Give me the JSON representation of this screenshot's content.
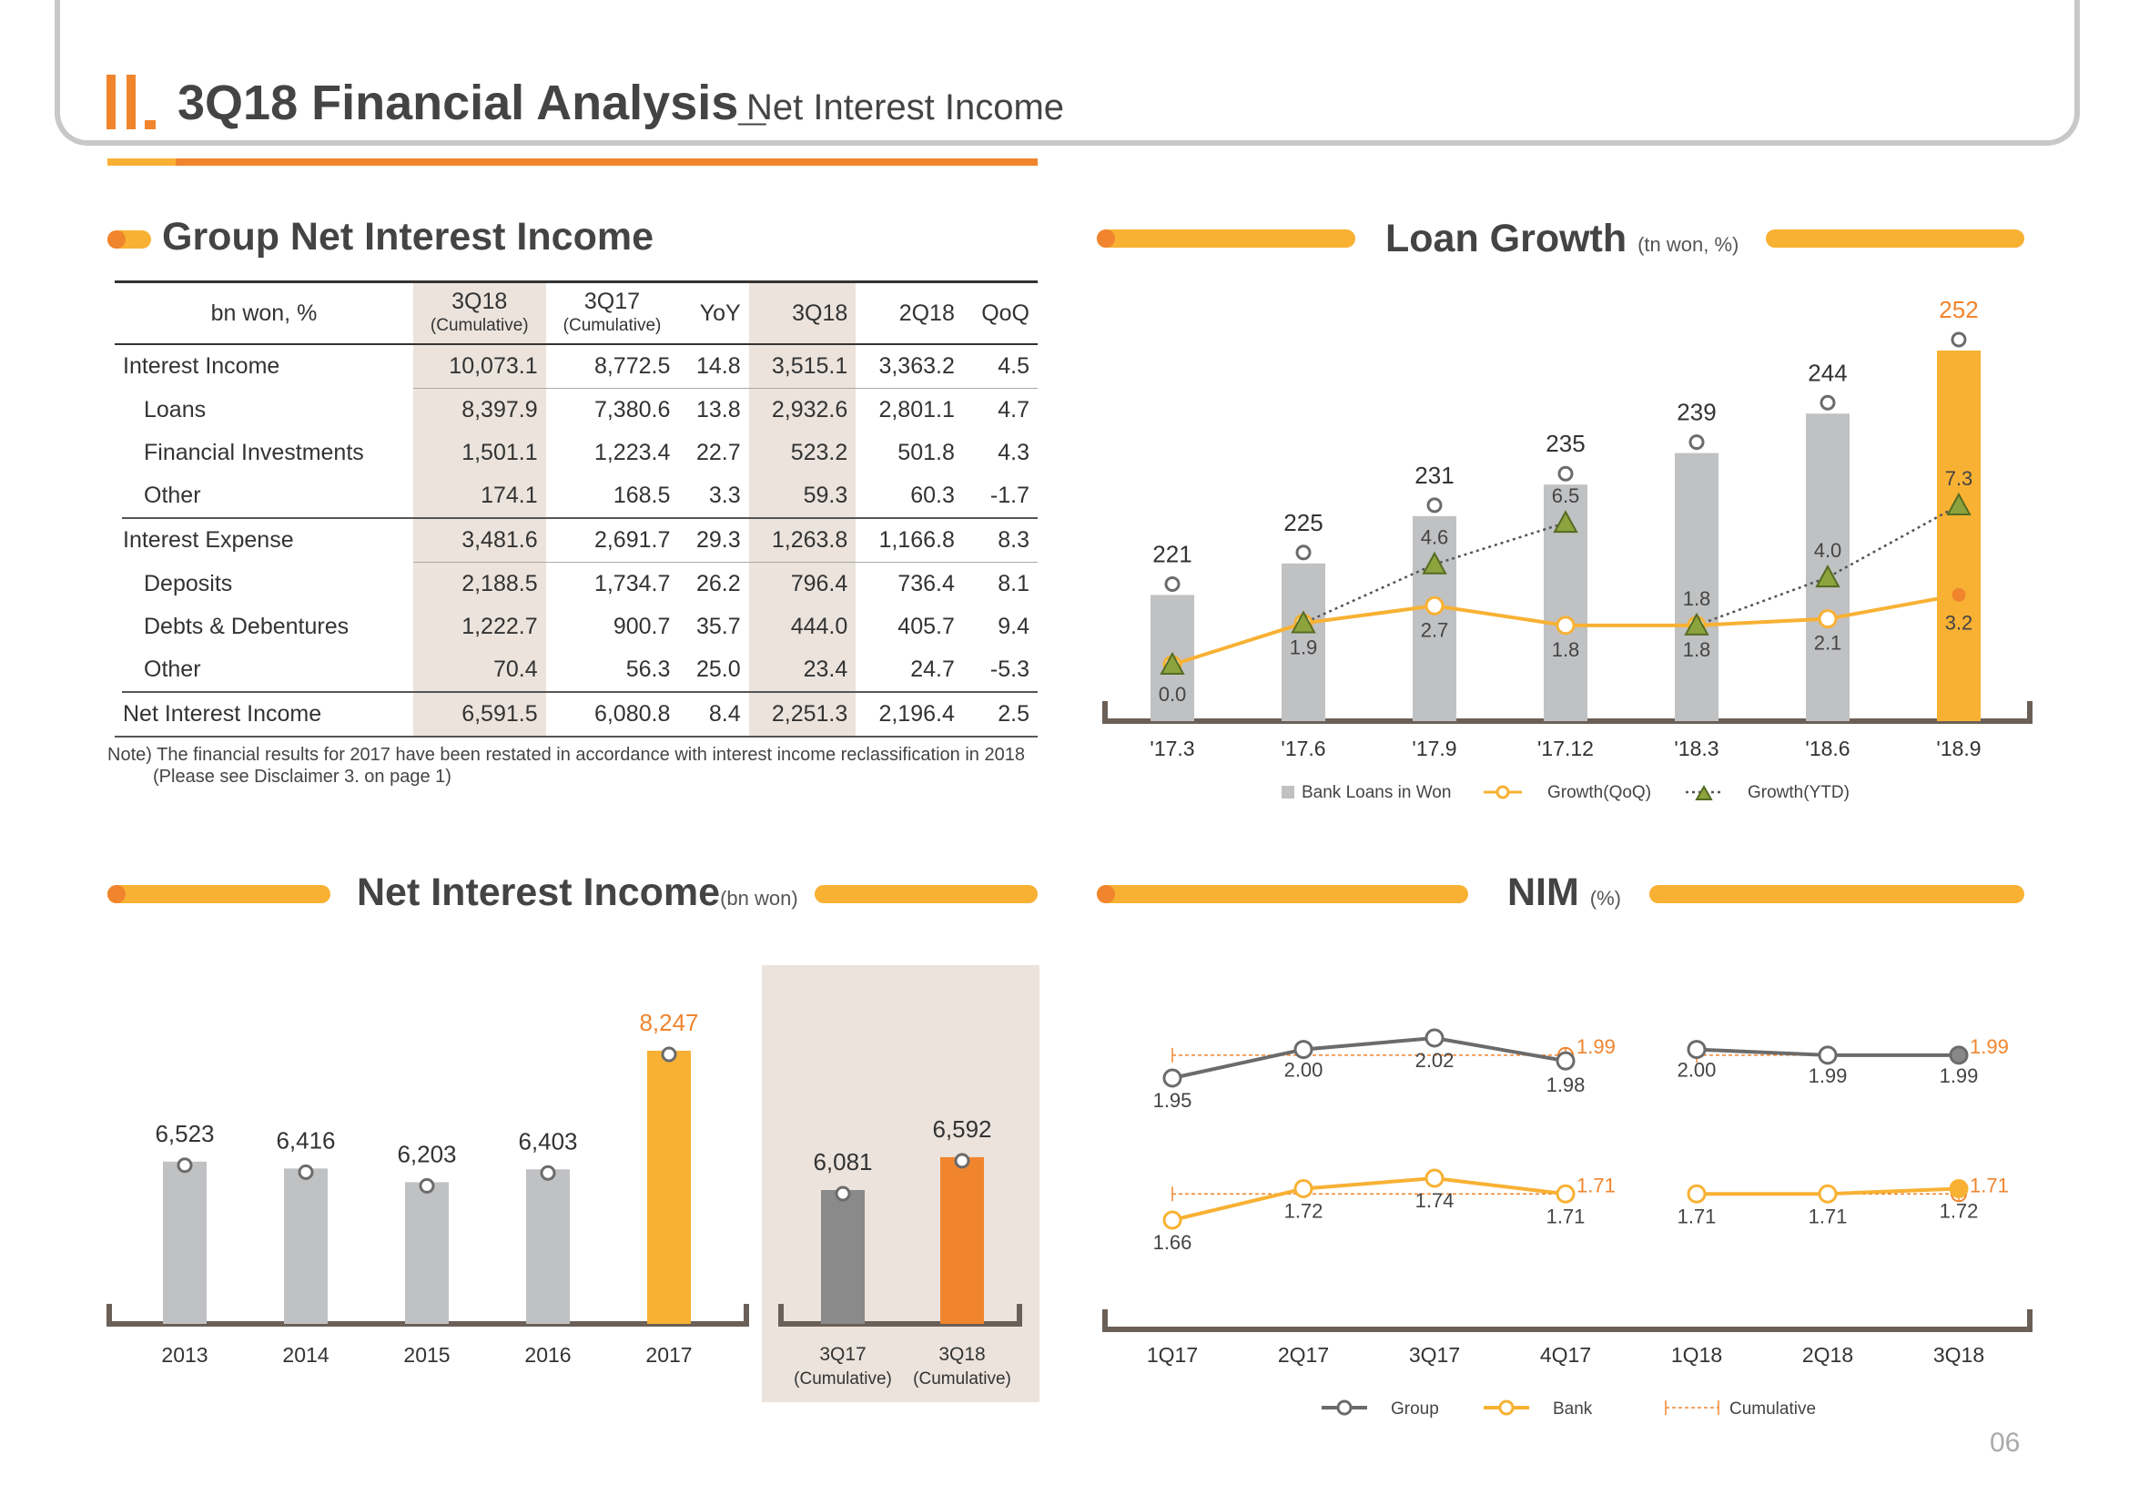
{
  "header": {
    "section_mark": "II.",
    "title": "3Q18 Financial Analysis_",
    "subtitle": "Net Interest Income"
  },
  "page_number": "06",
  "table_section": {
    "title": "Group Net Interest Income"
  },
  "table": {
    "header": {
      "label": "bn won, %",
      "c1": "3Q18",
      "c1s": "(Cumulative)",
      "c2": "3Q17",
      "c2s": "(Cumulative)",
      "c3": "YoY",
      "c4": "3Q18",
      "c5": "2Q18",
      "c6": "QoQ"
    },
    "rows": [
      {
        "label": "Interest Income",
        "v": [
          "10,073.1",
          "8,772.5",
          "14.8",
          "3,515.1",
          "3,363.2",
          "4.5"
        ]
      },
      {
        "label": "Loans",
        "v": [
          "8,397.9",
          "7,380.6",
          "13.8",
          "2,932.6",
          "2,801.1",
          "4.7"
        ]
      },
      {
        "label": "Financial Investments",
        "v": [
          "1,501.1",
          "1,223.4",
          "22.7",
          "523.2",
          "501.8",
          "4.3"
        ]
      },
      {
        "label": "Other",
        "v": [
          "174.1",
          "168.5",
          "3.3",
          "59.3",
          "60.3",
          "-1.7"
        ]
      },
      {
        "label": "Interest Expense",
        "v": [
          "3,481.6",
          "2,691.7",
          "29.3",
          "1,263.8",
          "1,166.8",
          "8.3"
        ]
      },
      {
        "label": "Deposits",
        "v": [
          "2,188.5",
          "1,734.7",
          "26.2",
          "796.4",
          "736.4",
          "8.1"
        ]
      },
      {
        "label": "Debts & Debentures",
        "v": [
          "1,222.7",
          "900.7",
          "35.7",
          "444.0",
          "405.7",
          "9.4"
        ]
      },
      {
        "label": "Other",
        "v": [
          "70.4",
          "56.3",
          "25.0",
          "23.4",
          "24.7",
          "-5.3"
        ]
      },
      {
        "label": "Net Interest Income",
        "v": [
          "6,591.5",
          "6,080.8",
          "8.4",
          "2,251.3",
          "2,196.4",
          "2.5"
        ]
      }
    ],
    "note1": "Note) The financial results for 2017 have been restated in accordance with interest income reclassification in 2018",
    "note2": "(Please see Disclaimer 3. on page 1)"
  },
  "colors": {
    "orange": "#f0852e",
    "yellow": "#f8b133",
    "gray": "#c0c1c3",
    "dark_gray": "#6b6b6b",
    "olive": "#8da33e"
  },
  "chart_data": [
    {
      "id": "loan_growth",
      "type": "bar",
      "title": "Loan Growth",
      "unit": "(tn won, %)",
      "categories": [
        "'17.3",
        "'17.6",
        "'17.9",
        "'17.12",
        "'18.3",
        "'18.6",
        "'18.9"
      ],
      "series": [
        {
          "name": "Bank Loans in Won",
          "type": "bar",
          "values": [
            221,
            225,
            231,
            235,
            239,
            244,
            252
          ]
        },
        {
          "name": "Growth(QoQ)",
          "type": "line",
          "values": [
            0.0,
            1.9,
            2.7,
            1.8,
            1.8,
            2.1,
            3.2
          ]
        },
        {
          "name": "Growth(YTD)",
          "type": "line",
          "values": [
            0.0,
            1.9,
            4.6,
            6.5,
            1.8,
            4.0,
            7.3
          ]
        }
      ]
    },
    {
      "id": "net_interest_income",
      "type": "bar",
      "title": "Net Interest Income",
      "unit": "(bn won)",
      "categories": [
        "2013",
        "2014",
        "2015",
        "2016",
        "2017"
      ],
      "values": [
        6523,
        6416,
        6203,
        6403,
        8247
      ],
      "value_labels": [
        "6,523",
        "6,416",
        "6,203",
        "6,403",
        "8,247"
      ],
      "cumulative": {
        "categories": [
          "3Q17",
          "3Q18"
        ],
        "sublabel": "(Cumulative)",
        "values": [
          6081,
          6592
        ],
        "value_labels": [
          "6,081",
          "6,592"
        ]
      }
    },
    {
      "id": "nim",
      "type": "line",
      "title": "NIM",
      "unit": "(%)",
      "categories": [
        "1Q17",
        "2Q17",
        "3Q17",
        "4Q17",
        "1Q18",
        "2Q18",
        "3Q18"
      ],
      "series": [
        {
          "name": "Group",
          "values": [
            1.95,
            2.0,
            2.02,
            1.98,
            2.0,
            1.99,
            1.99
          ],
          "cumulative": [
            1.99,
            1.99
          ]
        },
        {
          "name": "Bank",
          "values": [
            1.66,
            1.72,
            1.74,
            1.71,
            1.71,
            1.71,
            1.72
          ],
          "cumulative": [
            1.71,
            1.71
          ]
        }
      ],
      "legend_cumulative": "Cumulative"
    }
  ]
}
